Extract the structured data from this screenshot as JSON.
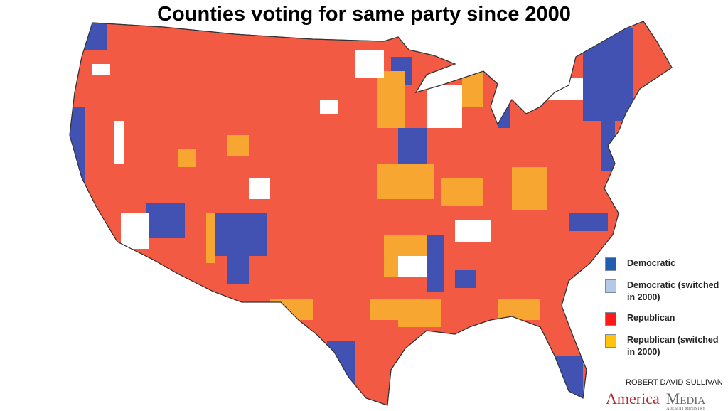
{
  "title": "Counties voting for same party since 2000",
  "legend": [
    {
      "label": "Democratic",
      "color": "#1f5fae"
    },
    {
      "label": "Democratic (switched in 2000)",
      "color": "#b4c8e8"
    },
    {
      "label": "Republican",
      "color": "#ff1a1a"
    },
    {
      "label": "Republican (switched in 2000)",
      "color": "#ffc20e"
    }
  ],
  "map_colors": {
    "republican": "#f25a44",
    "democratic": "#4152b3",
    "rep_switched": "#f7a631",
    "other": "#ffffff"
  },
  "credit": "ROBERT DAVID SULLIVAN",
  "logo": {
    "left": "America",
    "right": "Media",
    "tagline": "A JESUIT MINISTRY"
  }
}
